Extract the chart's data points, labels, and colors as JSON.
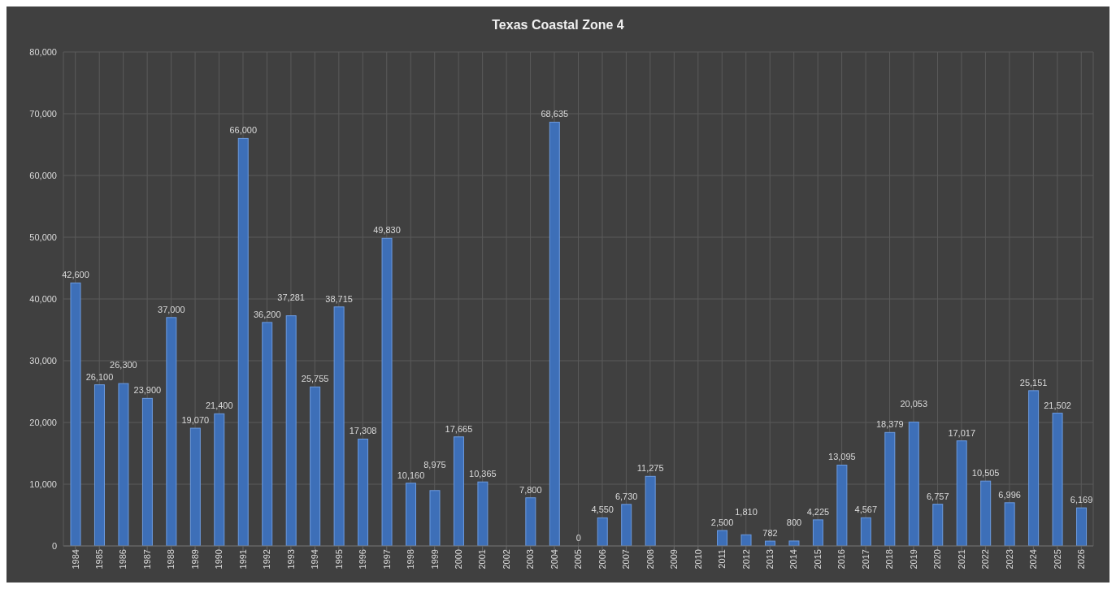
{
  "chart_data": {
    "type": "bar",
    "title": "Texas Coastal Zone 4",
    "categories": [
      "1984",
      "1985",
      "1986",
      "1987",
      "1988",
      "1989",
      "1990",
      "1991",
      "1992",
      "1993",
      "1994",
      "1995",
      "1996",
      "1997",
      "1998",
      "1999",
      "2000",
      "2001",
      "2002",
      "2003",
      "2004",
      "2005",
      "2006",
      "2007",
      "2008",
      "2009",
      "2010",
      "2011",
      "2012",
      "2013",
      "2014",
      "2015",
      "2016",
      "2017",
      "2018",
      "2019",
      "2020",
      "2021",
      "2022",
      "2023",
      "2024",
      "2025",
      "2026"
    ],
    "values": [
      42600,
      26100,
      26300,
      23900,
      37000,
      19070,
      21400,
      66000,
      36200,
      37281,
      25755,
      38715,
      17308,
      49830,
      10160,
      8975,
      17665,
      10365,
      null,
      7800,
      68635,
      0,
      4550,
      6730,
      11275,
      null,
      null,
      2500,
      1810,
      782,
      800,
      4225,
      13095,
      4567,
      18379,
      20053,
      6757,
      17017,
      10505,
      6996,
      25151,
      21502,
      6169
    ],
    "value_labels": [
      "42,600",
      "26,100",
      "26,300",
      "23,900",
      "37,000",
      "19,070",
      "21,400",
      "66,000",
      "36,200",
      "37,281",
      "25,755",
      "38,715",
      "17,308",
      "49,830",
      "10,160",
      "8,975",
      "17,665",
      "10,365",
      null,
      "7,800",
      "68,635",
      "0",
      "4,550",
      "6,730",
      "11,275",
      null,
      null,
      "2,500",
      "1,810",
      "782",
      "800",
      "4,225",
      "13,095",
      "4,567",
      "18,379",
      "20,053",
      "6,757",
      "17,017",
      "10,505",
      "6,996",
      "25,151",
      "21,502",
      "6,169"
    ],
    "color": "#3d6fb8",
    "ylim": [
      0,
      80000
    ],
    "yticks": [
      {
        "value": 0,
        "label": "0"
      },
      {
        "value": 10000,
        "label": "10,000"
      },
      {
        "value": 20000,
        "label": "20,000"
      },
      {
        "value": 30000,
        "label": "30,000"
      },
      {
        "value": 40000,
        "label": "40,000"
      },
      {
        "value": 50000,
        "label": "50,000"
      },
      {
        "value": 60000,
        "label": "60,000"
      },
      {
        "value": 70000,
        "label": "70,000"
      },
      {
        "value": 80000,
        "label": "80,000"
      }
    ],
    "grid": true
  }
}
